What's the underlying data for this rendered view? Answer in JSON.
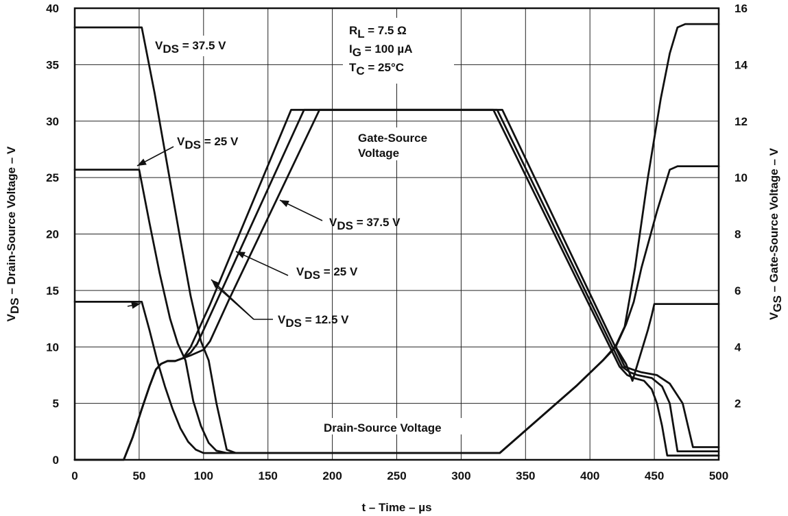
{
  "chart_data": {
    "type": "line",
    "xlabel": "t – Time – µs",
    "ylabel_left": "V_DS – Drain-Source Voltage – V",
    "ylabel_right": "V_GS – Gate-Source Voltage – V",
    "xlim": [
      0,
      500
    ],
    "ylim_left": [
      0,
      40
    ],
    "ylim_right": [
      0,
      16
    ],
    "x_ticks": [
      "0",
      "50",
      "100",
      "150",
      "200",
      "250",
      "300",
      "350",
      "400",
      "450",
      "500"
    ],
    "y_left_ticks": [
      "0",
      "5",
      "10",
      "15",
      "20",
      "25",
      "30",
      "35",
      "40"
    ],
    "y_right_ticks": [
      "2",
      "4",
      "6",
      "8",
      "10",
      "12",
      "14",
      "16"
    ],
    "grid": true,
    "conditions": [
      "R_L = 7.5 Ω",
      "I_G = 100 µA",
      "T_C = 25°C"
    ],
    "series": [
      {
        "name": "V_DS = 37.5 V",
        "axis": "left",
        "group": "Drain-Source Voltage",
        "x": [
          0,
          52,
          62,
          72,
          82,
          90,
          98,
          104,
          110,
          118,
          125,
          330,
          390,
          410,
          420,
          427,
          435,
          445,
          455,
          462,
          468,
          474,
          500
        ],
        "y": [
          38.3,
          38.3,
          32.5,
          26,
          19.5,
          14.5,
          10.5,
          8.8,
          5,
          0.9,
          0.6,
          0.6,
          6.6,
          8.8,
          10.1,
          11.8,
          17,
          25,
          32,
          36,
          38.3,
          38.6,
          38.6
        ]
      },
      {
        "name": "V_DS = 25 V",
        "axis": "left",
        "group": "Drain-Source Voltage",
        "x": [
          0,
          50,
          58,
          66,
          74,
          80,
          86,
          92,
          98,
          104,
          110,
          118,
          330,
          390,
          410,
          420,
          428,
          434,
          440,
          446,
          452,
          462,
          468,
          500
        ],
        "y": [
          25.7,
          25.7,
          21,
          16.5,
          12.5,
          10.3,
          8.8,
          5.2,
          3,
          1.5,
          0.8,
          0.6,
          0.6,
          6.6,
          8.8,
          10,
          12,
          14,
          17,
          19.5,
          22,
          25.7,
          26,
          26
        ]
      },
      {
        "name": "V_DS = 12.5 V",
        "axis": "left",
        "group": "Drain-Source Voltage",
        "x": [
          0,
          52,
          58,
          64,
          70,
          76,
          82,
          88,
          94,
          100,
          110,
          330,
          390,
          410,
          420,
          428,
          433,
          437,
          441,
          445,
          448,
          450,
          500
        ],
        "y": [
          14,
          14,
          11.5,
          8.8,
          6.5,
          4.5,
          2.8,
          1.6,
          0.9,
          0.6,
          0.6,
          0.6,
          6.6,
          8.8,
          10,
          8.5,
          7,
          8.5,
          10,
          11.5,
          12.8,
          13.8,
          13.8
        ]
      },
      {
        "name": "V_DS = 12.5 V",
        "axis": "right",
        "group": "Gate-Source Voltage",
        "x": [
          0,
          38,
          45,
          52,
          58,
          63,
          67,
          72,
          78,
          84,
          90,
          95,
          100,
          105,
          168,
          325,
          423,
          429,
          434,
          442,
          448,
          452,
          456,
          460,
          500
        ],
        "y": [
          0,
          0,
          0.8,
          1.8,
          2.6,
          3.2,
          3.4,
          3.5,
          3.5,
          3.6,
          4,
          4.5,
          5,
          5.5,
          12.4,
          12.4,
          3.3,
          3.0,
          2.9,
          2.8,
          2.5,
          2.0,
          1.2,
          0.15,
          0.15
        ]
      },
      {
        "name": "V_DS = 25 V",
        "axis": "right",
        "group": "Gate-Source Voltage",
        "x": [
          0,
          38,
          45,
          52,
          58,
          63,
          67,
          72,
          78,
          84,
          90,
          95,
          100,
          105,
          110,
          178,
          328,
          425,
          431,
          437,
          448,
          456,
          462,
          468,
          500
        ],
        "y": [
          0,
          0,
          0.8,
          1.8,
          2.6,
          3.2,
          3.4,
          3.5,
          3.5,
          3.6,
          3.8,
          4.1,
          4.6,
          5.1,
          5.6,
          12.4,
          12.4,
          3.3,
          3.1,
          3.0,
          2.9,
          2.6,
          2.0,
          0.3,
          0.3
        ]
      },
      {
        "name": "V_DS = 37.5 V",
        "axis": "right",
        "group": "Gate-Source Voltage",
        "x": [
          0,
          38,
          45,
          52,
          58,
          63,
          67,
          72,
          78,
          84,
          90,
          95,
          100,
          105,
          110,
          115,
          120,
          190,
          332,
          427,
          433,
          440,
          452,
          462,
          472,
          480,
          500
        ],
        "y": [
          0,
          0,
          0.8,
          1.8,
          2.6,
          3.2,
          3.4,
          3.5,
          3.5,
          3.6,
          3.7,
          3.8,
          3.9,
          4.2,
          4.7,
          5.2,
          5.7,
          12.4,
          12.4,
          3.3,
          3.2,
          3.1,
          3.0,
          2.7,
          2.0,
          0.45,
          0.45
        ]
      }
    ],
    "labels": {
      "vds375_top": "V_DS = 37.5 V",
      "vds25_left": "V_DS = 25 V",
      "gate_source": [
        "Gate-Source",
        "Voltage"
      ],
      "vgs375": "V_DS = 37.5 V",
      "vgs25": "V_DS = 25 V",
      "vgs125": "V_DS = 12.5 V",
      "drain_source": "Drain-Source Voltage"
    }
  }
}
